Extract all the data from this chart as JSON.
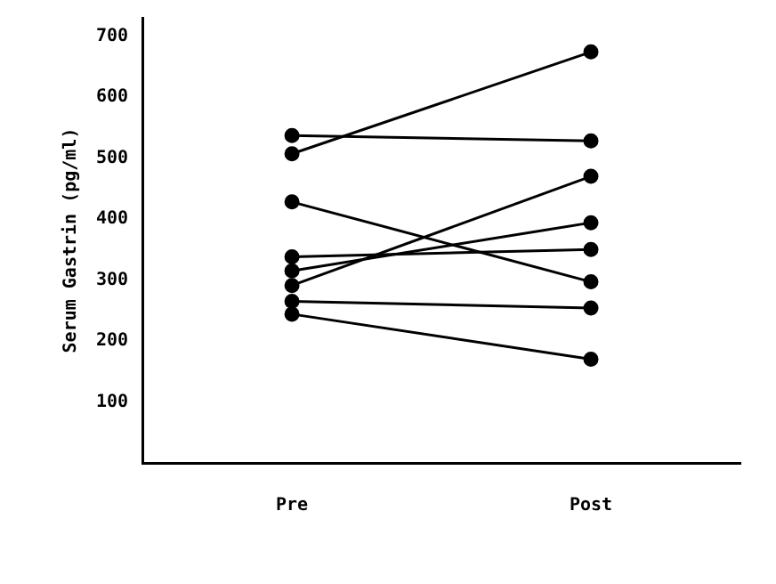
{
  "chart_data": {
    "type": "line",
    "ylabel": "Serum Gastrin (pg/ml)",
    "categories": [
      "Pre",
      "Post"
    ],
    "ylim": [
      0,
      730
    ],
    "yticks": [
      100,
      200,
      300,
      400,
      500,
      600,
      700
    ],
    "grid": false,
    "legend": false,
    "marker": "circle",
    "line_style": "solid",
    "series": [
      {
        "color": "#000000",
        "values": [
          537,
          528
        ]
      },
      {
        "color": "#000000",
        "values": [
          507,
          674
        ]
      },
      {
        "color": "#000000",
        "values": [
          428,
          297
        ]
      },
      {
        "color": "#000000",
        "values": [
          338,
          350
        ]
      },
      {
        "color": "#000000",
        "values": [
          315,
          394
        ]
      },
      {
        "color": "#000000",
        "values": [
          291,
          470
        ]
      },
      {
        "color": "#000000",
        "values": [
          265,
          254
        ]
      },
      {
        "color": "#000000",
        "values": [
          244,
          170
        ]
      }
    ]
  }
}
